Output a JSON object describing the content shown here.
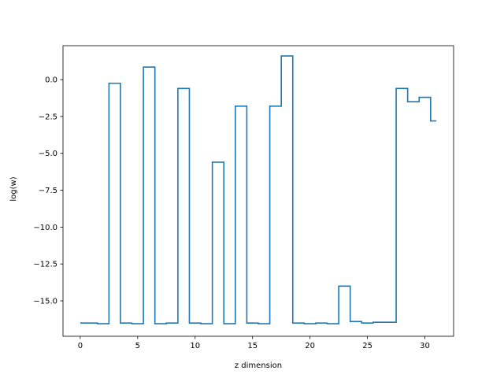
{
  "chart_data": {
    "type": "line",
    "drawstyle": "steps-mid",
    "title": "",
    "xlabel": "z dimension",
    "ylabel": "log(w)",
    "xlim": [
      -1.5,
      32.5
    ],
    "ylim": [
      -17.4,
      2.3
    ],
    "xticks": [
      0,
      5,
      10,
      15,
      20,
      25,
      30
    ],
    "xtick_labels": [
      "0",
      "5",
      "10",
      "15",
      "20",
      "25",
      "30"
    ],
    "yticks": [
      0.0,
      -2.5,
      -5.0,
      -7.5,
      -10.0,
      -12.5,
      -15.0
    ],
    "ytick_labels": [
      "0.0",
      "−2.5",
      "−5.0",
      "−7.5",
      "−10.0",
      "−12.5",
      "−15.0"
    ],
    "grid": false,
    "color": "#1f77b4",
    "series": [
      {
        "x": [
          0,
          1,
          2,
          3,
          4,
          5,
          6,
          7,
          8,
          9,
          10,
          11,
          12,
          13,
          14,
          15,
          16,
          17,
          18,
          19,
          20,
          21,
          22,
          23,
          24,
          25,
          26,
          27,
          28,
          29,
          30,
          31
        ],
        "values": [
          -16.5,
          -16.5,
          -16.55,
          -0.25,
          -16.5,
          -16.55,
          0.85,
          -16.55,
          -16.5,
          -0.6,
          -16.5,
          -16.55,
          -5.6,
          -16.55,
          -1.8,
          -16.5,
          -16.55,
          -1.8,
          1.6,
          -16.5,
          -16.55,
          -16.5,
          -16.55,
          -14.0,
          -16.4,
          -16.5,
          -16.45,
          -16.45,
          -0.6,
          -1.5,
          -1.2,
          -2.8
        ]
      }
    ]
  }
}
